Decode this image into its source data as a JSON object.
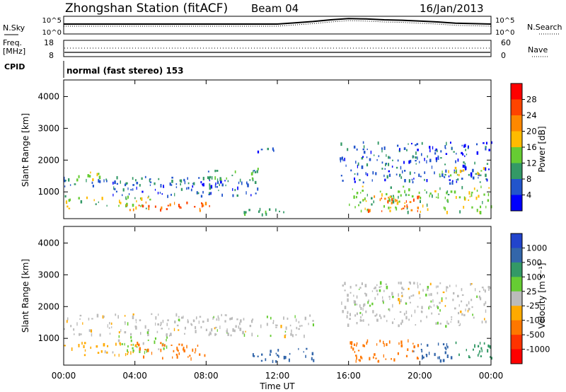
{
  "header": {
    "title": "Zhongshan Station (fitACF)",
    "beam": "Beam 04",
    "date": "16/Jan/2013"
  },
  "side_labels": {
    "nsky": "N.Sky",
    "nsearch": "N.Search",
    "freq_top": "Freq.",
    "freq_unit": "[MHz]",
    "nave": "Nave",
    "cpid": "CPID",
    "cpid_text": "normal (fast stereo) 153"
  },
  "small_ticks": {
    "noise_left_top": "10^5",
    "noise_left_bottom": "10^0",
    "noise_right_top": "10^5",
    "noise_right_bottom": "10^0",
    "freq_left_top": "18",
    "freq_left_bottom": "8",
    "nave_right_top": "60",
    "nave_right_bottom": "0"
  },
  "colorbars": {
    "power": {
      "label": "Power [dB]",
      "ticks": [
        "28",
        "24",
        "20",
        "16",
        "12",
        "8",
        "4"
      ],
      "colors": [
        "#ff0000",
        "#ff4400",
        "#ff8800",
        "#ffbb00",
        "#66cc33",
        "#339966",
        "#2255cc",
        "#0000ff"
      ]
    },
    "velocity": {
      "label": "Velocity [m s⁻¹]",
      "ticks": [
        "1000",
        "500",
        "100",
        "25",
        "-25",
        "-100",
        "-500",
        "-1000"
      ],
      "colors": [
        "#2244cc",
        "#3366aa",
        "#339966",
        "#66cc33",
        "#bbbbbb",
        "#ffaa00",
        "#ff7700",
        "#ff3300",
        "#ff0000"
      ]
    }
  },
  "axes": {
    "ylabel": "Slant Range [km]",
    "xlabel": "Time UT",
    "yticks": [
      "4000",
      "3000",
      "2000",
      "1000"
    ],
    "xticks": [
      "00:00",
      "04:00",
      "08:00",
      "12:00",
      "16:00",
      "20:00",
      "00:00"
    ]
  },
  "chart_data": [
    {
      "type": "line",
      "name": "noise",
      "x_hours": [
        0,
        2,
        4,
        6,
        8,
        10,
        12,
        13,
        14,
        15,
        16,
        17,
        18,
        19,
        20,
        21,
        22,
        24
      ],
      "series": [
        {
          "values": [
            2,
            2,
            2,
            2,
            2,
            2,
            2,
            2.3,
            2.6,
            3.0,
            3.3,
            3.2,
            3.0,
            2.9,
            2.7,
            2.5,
            2.2,
            2
          ]
        }
      ]
    },
    {
      "type": "heatmap",
      "name": "power",
      "x_range_hours": [
        0,
        24
      ],
      "y_range_km": [
        180,
        4500
      ],
      "regions": [
        {
          "t": [
            0,
            9.5
          ],
          "r": [
            1200,
            1500
          ],
          "v": 8
        },
        {
          "t": [
            0,
            2
          ],
          "r": [
            1400,
            1650
          ],
          "v": 14
        },
        {
          "t": [
            0,
            5
          ],
          "r": [
            500,
            900
          ],
          "v": 14
        },
        {
          "t": [
            3,
            8.5
          ],
          "r": [
            420,
            700
          ],
          "v": 24
        },
        {
          "t": [
            2.5,
            11
          ],
          "r": [
            900,
            1400
          ],
          "v": 6
        },
        {
          "t": [
            8,
            11
          ],
          "r": [
            1400,
            1800
          ],
          "v": 10
        },
        {
          "t": [
            10,
            13.5
          ],
          "r": [
            300,
            500
          ],
          "v": 12
        },
        {
          "t": [
            10.5,
            12
          ],
          "r": [
            2200,
            2400
          ],
          "v": 6
        },
        {
          "t": [
            15.5,
            24
          ],
          "r": [
            1300,
            2600
          ],
          "v": 6
        },
        {
          "t": [
            16,
            24
          ],
          "r": [
            400,
            1200
          ],
          "v": 14
        },
        {
          "t": [
            17,
            20
          ],
          "r": [
            400,
            900
          ],
          "v": 24
        },
        {
          "t": [
            21,
            24
          ],
          "r": [
            1500,
            1800
          ],
          "v": 16
        }
      ]
    },
    {
      "type": "heatmap",
      "name": "velocity",
      "x_range_hours": [
        0,
        24
      ],
      "y_range_km": [
        180,
        4500
      ],
      "regions": [
        {
          "t": [
            0,
            14
          ],
          "r": [
            1100,
            1800
          ],
          "v": 0
        },
        {
          "t": [
            0,
            4
          ],
          "r": [
            500,
            900
          ],
          "v": -50
        },
        {
          "t": [
            3,
            6
          ],
          "r": [
            600,
            1100
          ],
          "v": 50
        },
        {
          "t": [
            4,
            8
          ],
          "r": [
            400,
            900
          ],
          "v": -150
        },
        {
          "t": [
            10.5,
            13
          ],
          "r": [
            300,
            700
          ],
          "v": 600
        },
        {
          "t": [
            13,
            14
          ],
          "r": [
            300,
            700
          ],
          "v": 800
        },
        {
          "t": [
            15.5,
            24
          ],
          "r": [
            1400,
            2800
          ],
          "v": 0
        },
        {
          "t": [
            16,
            20
          ],
          "r": [
            300,
            1000
          ],
          "v": -300
        },
        {
          "t": [
            19.5,
            22
          ],
          "r": [
            300,
            900
          ],
          "v": 700
        },
        {
          "t": [
            22,
            24
          ],
          "r": [
            300,
            900
          ],
          "v": 300
        }
      ]
    }
  ]
}
